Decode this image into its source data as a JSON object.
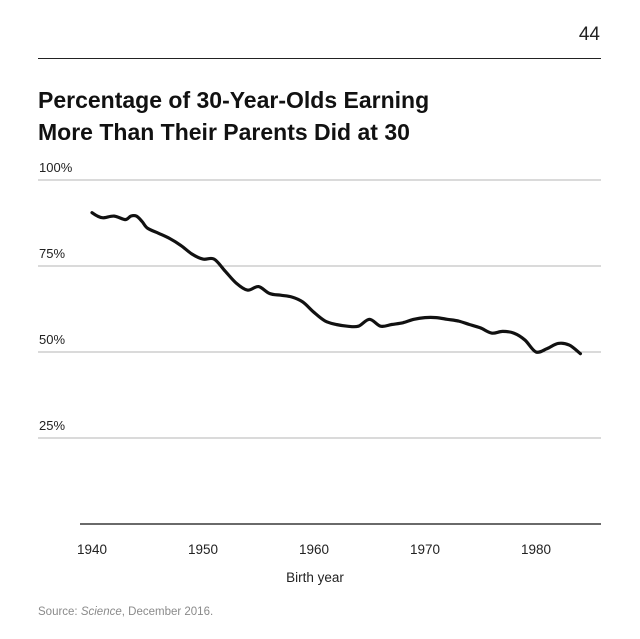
{
  "page": {
    "number": "44"
  },
  "title": {
    "line1": "Percentage of 30-Year-Olds Earning",
    "line2": "More Than Their Parents Did at 30"
  },
  "source": {
    "prefix": "Source: ",
    "publication": "Science",
    "suffix": ", December 2016."
  },
  "chart_data": {
    "type": "line",
    "title": "Percentage of 30-Year-Olds Earning More Than Their Parents Did at 30",
    "xlabel": "Birth year",
    "ylabel": "",
    "xlim": [
      1939,
      1986
    ],
    "ylim": [
      0,
      100
    ],
    "x_ticks": [
      1940,
      1950,
      1960,
      1970,
      1980
    ],
    "x_tick_labels": [
      "1940",
      "1950",
      "1960",
      "1970",
      "1980"
    ],
    "y_ticks": [
      25,
      50,
      75,
      100
    ],
    "y_tick_labels": [
      "25%",
      "50%",
      "75%",
      "100%"
    ],
    "grid": "horizontal",
    "legend": "none",
    "series": [
      {
        "color": "#111111",
        "x": [
          1940,
          1940.5,
          1941,
          1942,
          1943,
          1943.5,
          1944,
          1944.5,
          1945,
          1946,
          1947,
          1948,
          1949,
          1950,
          1951,
          1952,
          1953,
          1954,
          1955,
          1956,
          1957,
          1958,
          1959,
          1960,
          1961,
          1962,
          1963,
          1964,
          1965,
          1966,
          1967,
          1968,
          1969,
          1970,
          1971,
          1972,
          1973,
          1974,
          1975,
          1976,
          1977,
          1978,
          1979,
          1980,
          1981,
          1982,
          1983,
          1984
        ],
        "values": [
          90.5,
          89.5,
          89,
          89.5,
          88.5,
          89.5,
          89.5,
          88,
          86,
          84.5,
          83,
          81,
          78.5,
          77,
          77,
          73.5,
          70,
          68,
          69,
          67,
          66.5,
          66,
          64.5,
          61.5,
          59,
          58,
          57.5,
          57.5,
          59.5,
          57.5,
          58,
          58.5,
          59.5,
          60,
          60,
          59.5,
          59,
          58,
          57,
          55.5,
          56,
          55.5,
          53.5,
          50,
          51,
          52.5,
          52,
          49.5
        ]
      }
    ]
  }
}
